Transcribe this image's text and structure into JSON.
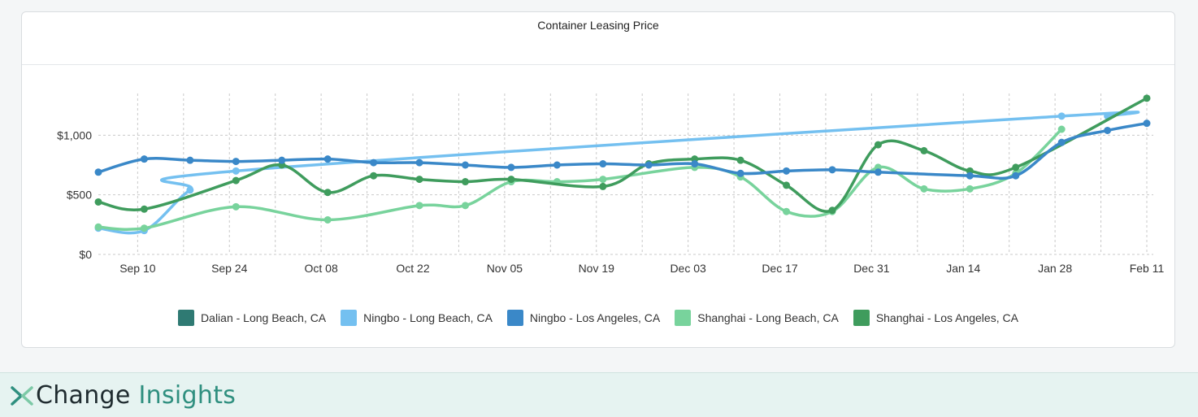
{
  "colors": {
    "series": [
      "#2f7a73",
      "#74c0f0",
      "#3a88c8",
      "#78d39c",
      "#3f9c5d"
    ],
    "grid": "#c9c9c9",
    "axis_text": "#333333"
  },
  "chart_data": {
    "type": "line",
    "title": "Container Leasing Price",
    "xlabel": "",
    "ylabel": "",
    "x_ticks": [
      "Sep 10",
      "Sep 24",
      "Oct 08",
      "Oct 22",
      "Nov 05",
      "Nov 19",
      "Dec 03",
      "Dec 17",
      "Dec 31",
      "Jan 14",
      "Jan 28",
      "Feb 11"
    ],
    "y_ticks": [
      "$0",
      "$500",
      "$1,000"
    ],
    "y_tick_values": [
      0,
      500,
      1000
    ],
    "ylim": [
      0,
      1350
    ],
    "xlim": [
      "2021-09-04",
      "2022-02-11"
    ],
    "grid": true,
    "legend_position": "bottom",
    "series": [
      {
        "name": "Dalian - Long Beach, CA",
        "points": []
      },
      {
        "name": "Ningbo - Long Beach, CA",
        "points": [
          [
            "2021-09-04",
            220
          ],
          [
            "2021-09-11",
            200
          ],
          [
            "2021-09-18",
            540
          ],
          [
            "2021-09-25",
            700
          ],
          [
            "2022-01-29",
            1160
          ],
          [
            "2022-02-05",
            1160
          ]
        ]
      },
      {
        "name": "Ningbo - Los Angeles, CA",
        "points": [
          [
            "2021-09-04",
            690
          ],
          [
            "2021-09-11",
            800
          ],
          [
            "2021-09-18",
            790
          ],
          [
            "2021-09-25",
            780
          ],
          [
            "2021-10-02",
            790
          ],
          [
            "2021-10-09",
            800
          ],
          [
            "2021-10-16",
            770
          ],
          [
            "2021-10-23",
            770
          ],
          [
            "2021-10-30",
            750
          ],
          [
            "2021-11-06",
            730
          ],
          [
            "2021-11-13",
            750
          ],
          [
            "2021-11-20",
            760
          ],
          [
            "2021-11-27",
            750
          ],
          [
            "2021-12-04",
            760
          ],
          [
            "2021-12-11",
            680
          ],
          [
            "2021-12-18",
            700
          ],
          [
            "2021-12-25",
            710
          ],
          [
            "2022-01-01",
            690
          ],
          [
            "2022-01-15",
            660
          ],
          [
            "2022-01-22",
            660
          ],
          [
            "2022-01-29",
            940
          ],
          [
            "2022-02-05",
            1040
          ],
          [
            "2022-02-11",
            1100
          ]
        ]
      },
      {
        "name": "Shanghai - Long Beach, CA",
        "points": [
          [
            "2021-09-04",
            230
          ],
          [
            "2021-09-11",
            220
          ],
          [
            "2021-09-25",
            400
          ],
          [
            "2021-10-09",
            290
          ],
          [
            "2021-10-23",
            410
          ],
          [
            "2021-10-30",
            410
          ],
          [
            "2021-11-06",
            610
          ],
          [
            "2021-11-13",
            610
          ],
          [
            "2021-11-20",
            630
          ],
          [
            "2021-12-04",
            730
          ],
          [
            "2021-12-11",
            650
          ],
          [
            "2021-12-18",
            360
          ],
          [
            "2021-12-25",
            360
          ],
          [
            "2022-01-01",
            730
          ],
          [
            "2022-01-08",
            550
          ],
          [
            "2022-01-15",
            550
          ],
          [
            "2022-01-22",
            680
          ],
          [
            "2022-01-29",
            1050
          ]
        ]
      },
      {
        "name": "Shanghai - Los Angeles, CA",
        "points": [
          [
            "2021-09-04",
            440
          ],
          [
            "2021-09-11",
            380
          ],
          [
            "2021-09-25",
            620
          ],
          [
            "2021-10-02",
            750
          ],
          [
            "2021-10-09",
            520
          ],
          [
            "2021-10-16",
            660
          ],
          [
            "2021-10-23",
            630
          ],
          [
            "2021-10-30",
            610
          ],
          [
            "2021-11-06",
            630
          ],
          [
            "2021-11-20",
            570
          ],
          [
            "2021-11-27",
            760
          ],
          [
            "2021-12-04",
            800
          ],
          [
            "2021-12-11",
            790
          ],
          [
            "2021-12-18",
            580
          ],
          [
            "2021-12-25",
            370
          ],
          [
            "2022-01-01",
            920
          ],
          [
            "2022-01-08",
            870
          ],
          [
            "2022-01-15",
            700
          ],
          [
            "2022-01-22",
            730
          ],
          [
            "2022-02-11",
            1310
          ]
        ]
      }
    ]
  },
  "footer": {
    "brand_main": "Change",
    "brand_light": "Insights"
  }
}
